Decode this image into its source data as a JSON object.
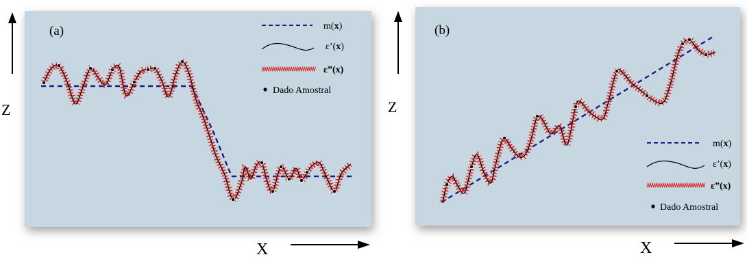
{
  "panels": [
    {
      "tag": "(a)",
      "y_axis_label": "Z",
      "x_axis_label": "X",
      "legend": {
        "mean": {
          "symbol_text": "m(",
          "bold_var": "x",
          "close": ")"
        },
        "eps1": {
          "symbol_text": "ε’(",
          "bold_var": "x",
          "close": ")"
        },
        "eps2": {
          "symbol_text": "ε”(",
          "bold_var": "x",
          "close": ")"
        },
        "sample": "Dado Amostral"
      }
    },
    {
      "tag": "(b)",
      "y_axis_label": "Z",
      "x_axis_label": "X",
      "legend": {
        "mean": {
          "symbol_text": "m(",
          "bold_var": "x",
          "close": ")"
        },
        "eps1": {
          "symbol_text": "ε’(",
          "bold_var": "x",
          "close": ")"
        },
        "eps2": {
          "symbol_text": "ε”(",
          "bold_var": "x",
          "close": ")"
        },
        "sample": "Dado Amostral"
      }
    }
  ],
  "colors": {
    "panel_bg": "#c7d7e1",
    "mean_line": "#1f1a80",
    "smooth_line": "#000000",
    "noise_line": "#e0201a",
    "sample_dot": "#000000"
  }
}
